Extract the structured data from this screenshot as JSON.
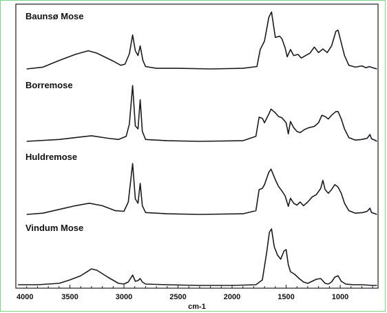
{
  "chart_data": {
    "type": "line",
    "title": "",
    "xlabel": "cm-1",
    "ylabel": "",
    "xlim": [
      4000,
      650
    ],
    "x_reversed": true,
    "grid": false,
    "legend": "none",
    "xticks": [
      4000,
      3500,
      3000,
      2500,
      2000,
      1500,
      1000
    ],
    "xtick_labels": [
      "4000",
      "3500",
      "3000",
      "2500",
      "2000",
      "1500",
      "1000"
    ],
    "stroke_color": "#1a1a1a",
    "series": [
      {
        "name": "Baunsø Mose",
        "points": [
          [
            3900,
            0.0
          ],
          [
            3750,
            0.03
          ],
          [
            3600,
            0.14
          ],
          [
            3450,
            0.24
          ],
          [
            3330,
            0.3
          ],
          [
            3250,
            0.26
          ],
          [
            3100,
            0.13
          ],
          [
            3030,
            0.06
          ],
          [
            2990,
            0.08
          ],
          [
            2950,
            0.25
          ],
          [
            2920,
            0.56
          ],
          [
            2895,
            0.3
          ],
          [
            2870,
            0.22
          ],
          [
            2850,
            0.38
          ],
          [
            2825,
            0.14
          ],
          [
            2800,
            0.04
          ],
          [
            2700,
            0.01
          ],
          [
            2500,
            0.01
          ],
          [
            2200,
            0.0
          ],
          [
            1900,
            0.01
          ],
          [
            1770,
            0.04
          ],
          [
            1740,
            0.32
          ],
          [
            1700,
            0.46
          ],
          [
            1660,
            0.85
          ],
          [
            1635,
            0.94
          ],
          [
            1600,
            0.52
          ],
          [
            1560,
            0.54
          ],
          [
            1540,
            0.5
          ],
          [
            1510,
            0.35
          ],
          [
            1490,
            0.2
          ],
          [
            1460,
            0.32
          ],
          [
            1430,
            0.22
          ],
          [
            1390,
            0.24
          ],
          [
            1360,
            0.18
          ],
          [
            1320,
            0.22
          ],
          [
            1280,
            0.26
          ],
          [
            1240,
            0.36
          ],
          [
            1200,
            0.27
          ],
          [
            1160,
            0.33
          ],
          [
            1120,
            0.27
          ],
          [
            1080,
            0.38
          ],
          [
            1040,
            0.62
          ],
          [
            1020,
            0.64
          ],
          [
            990,
            0.43
          ],
          [
            960,
            0.22
          ],
          [
            920,
            0.06
          ],
          [
            860,
            0.03
          ],
          [
            800,
            0.05
          ],
          [
            760,
            0.02
          ],
          [
            730,
            0.04
          ],
          [
            700,
            0.02
          ],
          [
            660,
            0.0
          ]
        ]
      },
      {
        "name": "Borremose",
        "points": [
          [
            3900,
            0.0
          ],
          [
            3600,
            0.03
          ],
          [
            3400,
            0.07
          ],
          [
            3300,
            0.09
          ],
          [
            3150,
            0.05
          ],
          [
            3050,
            0.03
          ],
          [
            2980,
            0.08
          ],
          [
            2950,
            0.28
          ],
          [
            2920,
            0.9
          ],
          [
            2895,
            0.25
          ],
          [
            2870,
            0.2
          ],
          [
            2850,
            0.67
          ],
          [
            2830,
            0.16
          ],
          [
            2800,
            0.03
          ],
          [
            2600,
            0.01
          ],
          [
            2300,
            0.0
          ],
          [
            1900,
            0.01
          ],
          [
            1780,
            0.08
          ],
          [
            1750,
            0.39
          ],
          [
            1720,
            0.37
          ],
          [
            1700,
            0.3
          ],
          [
            1660,
            0.44
          ],
          [
            1640,
            0.52
          ],
          [
            1600,
            0.46
          ],
          [
            1570,
            0.4
          ],
          [
            1540,
            0.38
          ],
          [
            1500,
            0.3
          ],
          [
            1480,
            0.12
          ],
          [
            1460,
            0.32
          ],
          [
            1430,
            0.22
          ],
          [
            1400,
            0.16
          ],
          [
            1370,
            0.14
          ],
          [
            1330,
            0.19
          ],
          [
            1290,
            0.22
          ],
          [
            1240,
            0.24
          ],
          [
            1200,
            0.3
          ],
          [
            1170,
            0.42
          ],
          [
            1140,
            0.4
          ],
          [
            1110,
            0.36
          ],
          [
            1080,
            0.42
          ],
          [
            1040,
            0.48
          ],
          [
            1020,
            0.48
          ],
          [
            990,
            0.36
          ],
          [
            960,
            0.2
          ],
          [
            920,
            0.06
          ],
          [
            860,
            0.02
          ],
          [
            800,
            0.03
          ],
          [
            750,
            0.05
          ],
          [
            725,
            0.11
          ],
          [
            710,
            0.04
          ],
          [
            680,
            0.02
          ],
          [
            660,
            0.0
          ]
        ]
      },
      {
        "name": "Huldremose",
        "points": [
          [
            3900,
            0.0
          ],
          [
            3750,
            0.02
          ],
          [
            3600,
            0.08
          ],
          [
            3450,
            0.14
          ],
          [
            3320,
            0.18
          ],
          [
            3200,
            0.14
          ],
          [
            3080,
            0.06
          ],
          [
            3000,
            0.05
          ],
          [
            2960,
            0.2
          ],
          [
            2920,
            0.82
          ],
          [
            2895,
            0.25
          ],
          [
            2870,
            0.18
          ],
          [
            2850,
            0.5
          ],
          [
            2830,
            0.14
          ],
          [
            2800,
            0.03
          ],
          [
            2600,
            0.01
          ],
          [
            2300,
            0.0
          ],
          [
            1900,
            0.01
          ],
          [
            1780,
            0.06
          ],
          [
            1750,
            0.4
          ],
          [
            1720,
            0.42
          ],
          [
            1700,
            0.48
          ],
          [
            1660,
            0.68
          ],
          [
            1640,
            0.73
          ],
          [
            1600,
            0.56
          ],
          [
            1570,
            0.45
          ],
          [
            1540,
            0.38
          ],
          [
            1510,
            0.3
          ],
          [
            1480,
            0.13
          ],
          [
            1460,
            0.26
          ],
          [
            1430,
            0.18
          ],
          [
            1400,
            0.15
          ],
          [
            1370,
            0.2
          ],
          [
            1340,
            0.14
          ],
          [
            1300,
            0.2
          ],
          [
            1260,
            0.28
          ],
          [
            1220,
            0.32
          ],
          [
            1180,
            0.42
          ],
          [
            1160,
            0.55
          ],
          [
            1140,
            0.4
          ],
          [
            1110,
            0.34
          ],
          [
            1080,
            0.4
          ],
          [
            1050,
            0.48
          ],
          [
            1020,
            0.44
          ],
          [
            990,
            0.34
          ],
          [
            960,
            0.18
          ],
          [
            920,
            0.06
          ],
          [
            860,
            0.02
          ],
          [
            790,
            0.03
          ],
          [
            750,
            0.05
          ],
          [
            725,
            0.1
          ],
          [
            710,
            0.03
          ],
          [
            660,
            0.0
          ]
        ]
      },
      {
        "name": "Vindum Mose",
        "points": [
          [
            3980,
            0.01
          ],
          [
            3800,
            0.01
          ],
          [
            3600,
            0.03
          ],
          [
            3500,
            0.08
          ],
          [
            3400,
            0.14
          ],
          [
            3300,
            0.24
          ],
          [
            3250,
            0.22
          ],
          [
            3150,
            0.12
          ],
          [
            3050,
            0.03
          ],
          [
            3000,
            0.02
          ],
          [
            2960,
            0.05
          ],
          [
            2920,
            0.15
          ],
          [
            2895,
            0.06
          ],
          [
            2870,
            0.07
          ],
          [
            2850,
            0.1
          ],
          [
            2830,
            0.05
          ],
          [
            2800,
            0.02
          ],
          [
            2600,
            0.01
          ],
          [
            2300,
            0.0
          ],
          [
            2000,
            0.0
          ],
          [
            1780,
            0.01
          ],
          [
            1720,
            0.08
          ],
          [
            1680,
            0.48
          ],
          [
            1655,
            0.77
          ],
          [
            1635,
            0.82
          ],
          [
            1610,
            0.56
          ],
          [
            1580,
            0.44
          ],
          [
            1550,
            0.38
          ],
          [
            1520,
            0.5
          ],
          [
            1500,
            0.52
          ],
          [
            1480,
            0.3
          ],
          [
            1460,
            0.2
          ],
          [
            1420,
            0.16
          ],
          [
            1380,
            0.1
          ],
          [
            1340,
            0.05
          ],
          [
            1300,
            0.03
          ],
          [
            1260,
            0.06
          ],
          [
            1220,
            0.09
          ],
          [
            1180,
            0.1
          ],
          [
            1140,
            0.03
          ],
          [
            1110,
            0.02
          ],
          [
            1080,
            0.05
          ],
          [
            1050,
            0.12
          ],
          [
            1020,
            0.14
          ],
          [
            990,
            0.06
          ],
          [
            950,
            0.02
          ],
          [
            880,
            0.01
          ],
          [
            800,
            0.01
          ],
          [
            700,
            0.0
          ],
          [
            660,
            0.0
          ]
        ]
      }
    ]
  }
}
